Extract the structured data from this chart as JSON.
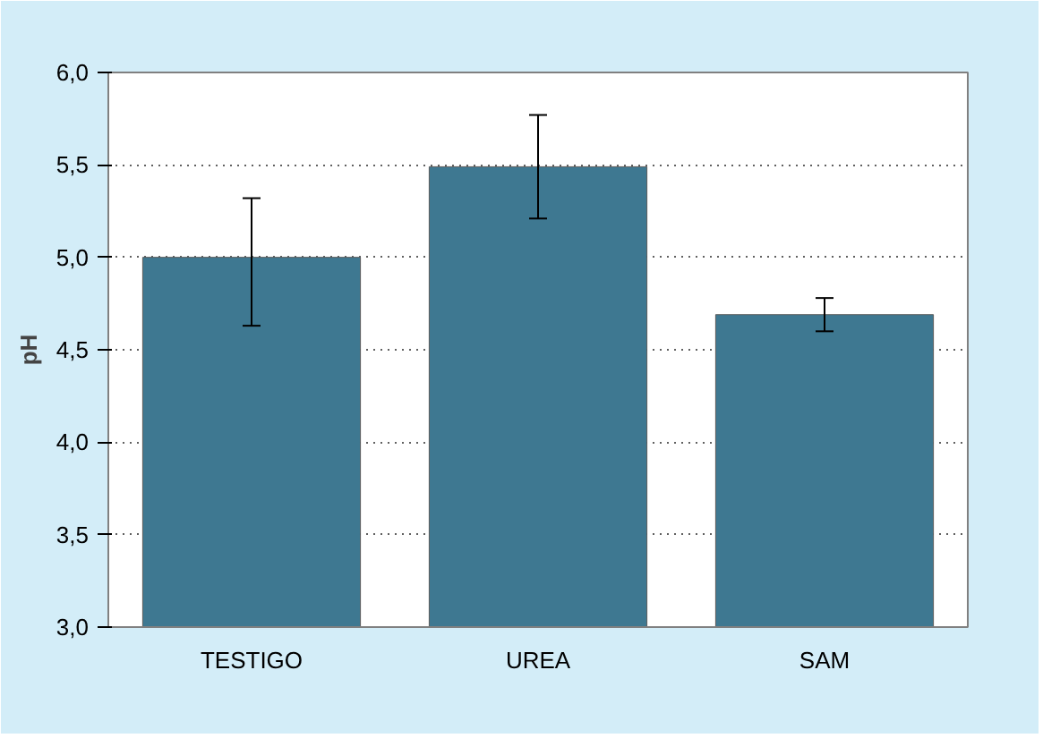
{
  "chart_data": {
    "type": "bar",
    "ylabel": "pH",
    "categories": [
      "TESTIGO",
      "UREA",
      "SAM"
    ],
    "values": [
      5.0,
      5.49,
      4.69
    ],
    "errors": [
      [
        4.63,
        5.32
      ],
      [
        5.21,
        5.77
      ],
      [
        4.6,
        4.78
      ]
    ],
    "color": "#3e7891",
    "ylim": [
      3.0,
      6.0
    ],
    "yticks": [
      {
        "value": 3.0,
        "label": "3,0"
      },
      {
        "value": 3.5,
        "label": "3,5"
      },
      {
        "value": 4.0,
        "label": "4,0"
      },
      {
        "value": 4.5,
        "label": "4,5"
      },
      {
        "value": 5.0,
        "label": "5,0"
      },
      {
        "value": 5.5,
        "label": "5,5"
      },
      {
        "value": 6.0,
        "label": "6,0"
      }
    ],
    "grid": "y"
  }
}
